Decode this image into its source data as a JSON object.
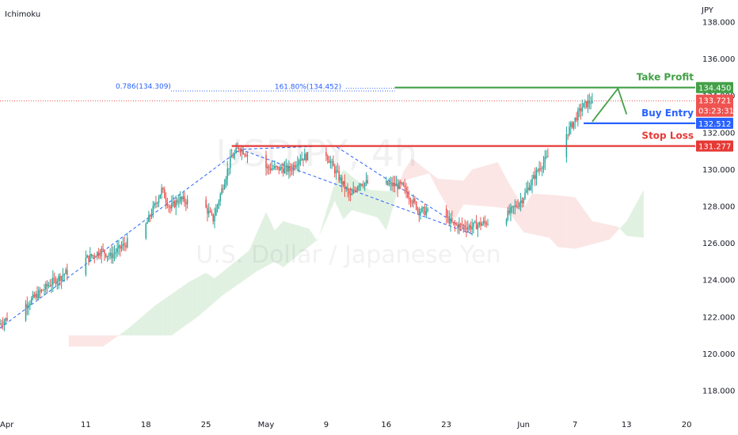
{
  "indicator_label": "Ichimoku",
  "currency_label": "JPY",
  "watermark": {
    "symbol": "USDJPY, 4h",
    "name": "U.S. Dollar / Japanese Yen"
  },
  "colors": {
    "up": "#26a69a",
    "down": "#ef5350",
    "take_profit": "#43a047",
    "entry": "#2962ff",
    "stop_loss": "#e53935",
    "cloud_green": "#c8e6c9",
    "cloud_red": "#f8d0d0",
    "current": "#ef5350"
  },
  "chart_data": {
    "type": "candlestick",
    "symbol": "USDJPY",
    "timeframe": "4h",
    "y_axis": {
      "ticks": [
        118,
        120,
        122,
        124,
        126,
        128,
        130,
        132,
        134,
        136,
        138
      ],
      "tick_labels": [
        "118.000",
        "120.000",
        "122.000",
        "124.000",
        "126.000",
        "128.000",
        "130.000",
        "132.000",
        "134.000",
        "136.000",
        "138.000"
      ],
      "range": [
        116.8,
        139.2
      ]
    },
    "x_axis": {
      "range": [
        "2022-04-01",
        "2022-06-21"
      ],
      "ticks": [
        {
          "date": "2022-04-01",
          "label": "Apr"
        },
        {
          "date": "2022-04-11",
          "label": "11"
        },
        {
          "date": "2022-04-18",
          "label": "18"
        },
        {
          "date": "2022-04-25",
          "label": "25"
        },
        {
          "date": "2022-05-02",
          "label": "May"
        },
        {
          "date": "2022-05-09",
          "label": "9"
        },
        {
          "date": "2022-05-16",
          "label": "16"
        },
        {
          "date": "2022-05-23",
          "label": "23"
        },
        {
          "date": "2022-06-01",
          "label": "Jun"
        },
        {
          "date": "2022-06-07",
          "label": "7"
        },
        {
          "date": "2022-06-13",
          "label": "13"
        },
        {
          "date": "2022-06-20",
          "label": "20"
        }
      ]
    },
    "price_path": [
      [
        "2022-04-01",
        121.6
      ],
      [
        "2022-04-04",
        122.6
      ],
      [
        "2022-04-07",
        123.8
      ],
      [
        "2022-04-11",
        125.1
      ],
      [
        "2022-04-13",
        125.6
      ],
      [
        "2022-04-14",
        125.3
      ],
      [
        "2022-04-18",
        126.8
      ],
      [
        "2022-04-20",
        128.9
      ],
      [
        "2022-04-21",
        127.9
      ],
      [
        "2022-04-22",
        128.4
      ],
      [
        "2022-04-25",
        128.0
      ],
      [
        "2022-04-26",
        127.3
      ],
      [
        "2022-04-28",
        130.5
      ],
      [
        "2022-04-29",
        131.2
      ],
      [
        "2022-05-02",
        130.1
      ],
      [
        "2022-05-05",
        130.0
      ],
      [
        "2022-05-06",
        130.6
      ],
      [
        "2022-05-09",
        131.0
      ],
      [
        "2022-05-10",
        130.1
      ],
      [
        "2022-05-12",
        128.5
      ],
      [
        "2022-05-13",
        129.3
      ],
      [
        "2022-05-16",
        129.2
      ],
      [
        "2022-05-18",
        129.1
      ],
      [
        "2022-05-20",
        127.8
      ],
      [
        "2022-05-23",
        127.5
      ],
      [
        "2022-05-24",
        127.0
      ],
      [
        "2022-05-26",
        126.9
      ],
      [
        "2022-05-30",
        127.4
      ],
      [
        "2022-06-01",
        128.4
      ],
      [
        "2022-06-03",
        130.1
      ],
      [
        "2022-06-06",
        131.8
      ],
      [
        "2022-06-07",
        132.6
      ],
      [
        "2022-06-08",
        133.4
      ],
      [
        "2022-06-09",
        133.72
      ]
    ],
    "current_price": {
      "value": 133.721,
      "label": "133.721",
      "countdown": "03:23:31"
    },
    "levels": [
      {
        "name": "Take Profit",
        "value": 134.45,
        "label": "134.450",
        "color_key": "take_profit",
        "start": "2022-05-17"
      },
      {
        "name": "Buy Entry",
        "value": 132.512,
        "label": "132.512",
        "color_key": "entry",
        "start": "2022-06-08"
      },
      {
        "name": "Stop Loss",
        "value": 131.277,
        "label": "131.277",
        "color_key": "stop_loss",
        "start": "2022-04-28"
      }
    ],
    "fib_annotations": [
      {
        "label": "0.786(134.309)",
        "value": 134.309,
        "start": "2022-04-20"
      },
      {
        "label": "161.80%(134.452)",
        "value": 134.452,
        "start": "2022-05-03"
      }
    ],
    "dashed_patterns": [
      {
        "points": [
          [
            "2022-04-01",
            121.4
          ],
          [
            "2022-04-29",
            131.1
          ]
        ]
      },
      {
        "points": [
          [
            "2022-04-29",
            131.1
          ],
          [
            "2022-05-26",
            126.5
          ],
          [
            "2022-05-10",
            131.3
          ],
          [
            "2022-04-29",
            131.1
          ]
        ]
      }
    ],
    "projection_arrow": [
      [
        "2022-06-09",
        132.6
      ],
      [
        "2022-06-12",
        134.4
      ],
      [
        "2022-06-13",
        133.0
      ]
    ]
  }
}
